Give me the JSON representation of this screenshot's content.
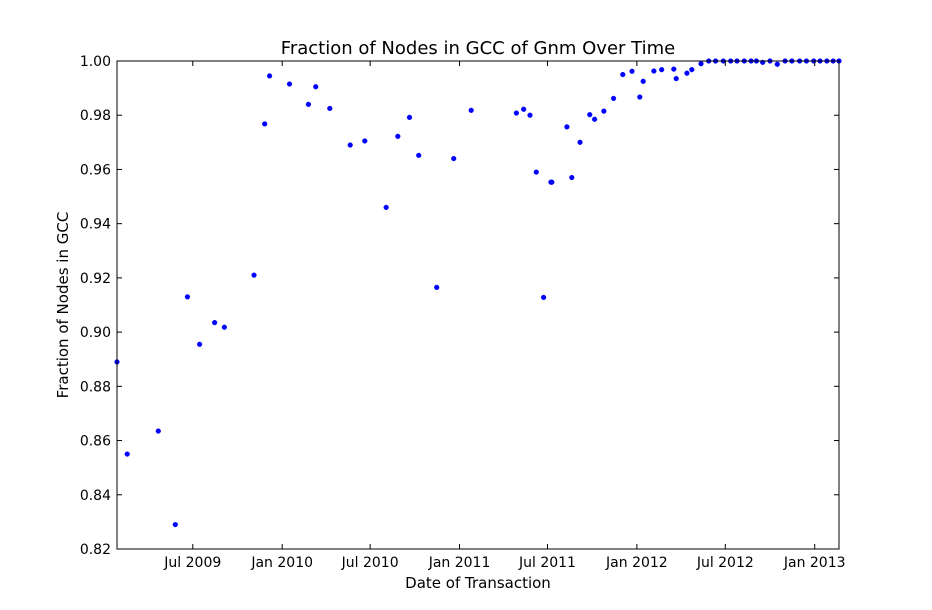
{
  "chart_data": {
    "type": "scatter",
    "title": "Fraction of Nodes in GCC of Gnm Over Time",
    "xlabel": "Date of Transaction",
    "ylabel": "Fraction of Nodes in GCC",
    "xlim": [
      "2009-01-26",
      "2013-02-20"
    ],
    "ylim": [
      0.82,
      1.0
    ],
    "x_ticks": [
      "2009-07-01",
      "2010-01-01",
      "2010-07-01",
      "2011-01-01",
      "2011-07-01",
      "2012-01-01",
      "2012-07-01",
      "2013-01-01"
    ],
    "x_tick_labels": [
      "Jul 2009",
      "Jan 2010",
      "Jul 2010",
      "Jan 2011",
      "Jul 2011",
      "Jan 2012",
      "Jul 2012",
      "Jan 2013"
    ],
    "y_ticks": [
      0.82,
      0.84,
      0.86,
      0.88,
      0.9,
      0.92,
      0.94,
      0.96,
      0.98,
      1.0
    ],
    "y_tick_labels": [
      "0.82",
      "0.84",
      "0.86",
      "0.88",
      "0.90",
      "0.92",
      "0.94",
      "0.96",
      "0.98",
      "1.00"
    ],
    "grid": false,
    "legend": false,
    "marker_color": "#0000ff",
    "series": [
      {
        "x": [
          "2009-01-26",
          "2009-02-16",
          "2009-04-21",
          "2009-05-26",
          "2009-06-20",
          "2009-07-15",
          "2009-08-15",
          "2009-09-04",
          "2009-11-04",
          "2009-11-26",
          "2009-12-06",
          "2010-01-16",
          "2010-02-24",
          "2010-03-11",
          "2010-04-09",
          "2010-05-21",
          "2010-06-20",
          "2010-08-03",
          "2010-08-27",
          "2010-09-20",
          "2010-10-09",
          "2010-11-15",
          "2010-12-20",
          "2011-01-25",
          "2011-04-28",
          "2011-05-13",
          "2011-05-26",
          "2011-06-08",
          "2011-06-23",
          "2011-07-08",
          "2011-07-10",
          "2011-08-10",
          "2011-08-20",
          "2011-09-06",
          "2011-09-26",
          "2011-10-06",
          "2011-10-25",
          "2011-11-14",
          "2011-12-03",
          "2011-12-22",
          "2012-01-07",
          "2012-01-14",
          "2012-02-05",
          "2012-02-21",
          "2012-03-17",
          "2012-03-22",
          "2012-04-13",
          "2012-04-23",
          "2012-05-12",
          "2012-05-28",
          "2012-06-11",
          "2012-06-27",
          "2012-07-12",
          "2012-07-25",
          "2012-08-09",
          "2012-08-23",
          "2012-09-03",
          "2012-09-16",
          "2012-10-01",
          "2012-10-16",
          "2012-11-01",
          "2012-11-15",
          "2012-12-01",
          "2012-12-15",
          "2012-12-30",
          "2013-01-12",
          "2013-01-26",
          "2013-02-08",
          "2013-02-20"
        ],
        "y": [
          0.889,
          0.855,
          0.8635,
          0.829,
          0.913,
          0.8955,
          0.9035,
          0.9018,
          0.921,
          0.9768,
          0.9945,
          0.9915,
          0.984,
          0.9905,
          0.9825,
          0.969,
          0.9705,
          0.946,
          0.9722,
          0.9792,
          0.9652,
          0.9165,
          0.964,
          0.9818,
          0.9808,
          0.9822,
          0.98,
          0.959,
          0.9128,
          0.9553,
          0.9553,
          0.9757,
          0.957,
          0.97,
          0.9802,
          0.9785,
          0.9815,
          0.9862,
          0.995,
          0.9962,
          0.9867,
          0.9925,
          0.9963,
          0.9968,
          0.997,
          0.9935,
          0.9955,
          0.9968,
          0.999,
          1.0,
          1.0,
          1.0,
          1.0,
          1.0,
          1.0,
          1.0,
          1.0,
          0.9995,
          1.0,
          0.9988,
          1.0,
          1.0,
          1.0,
          1.0,
          1.0,
          1.0,
          1.0,
          1.0,
          1.0
        ]
      }
    ]
  }
}
